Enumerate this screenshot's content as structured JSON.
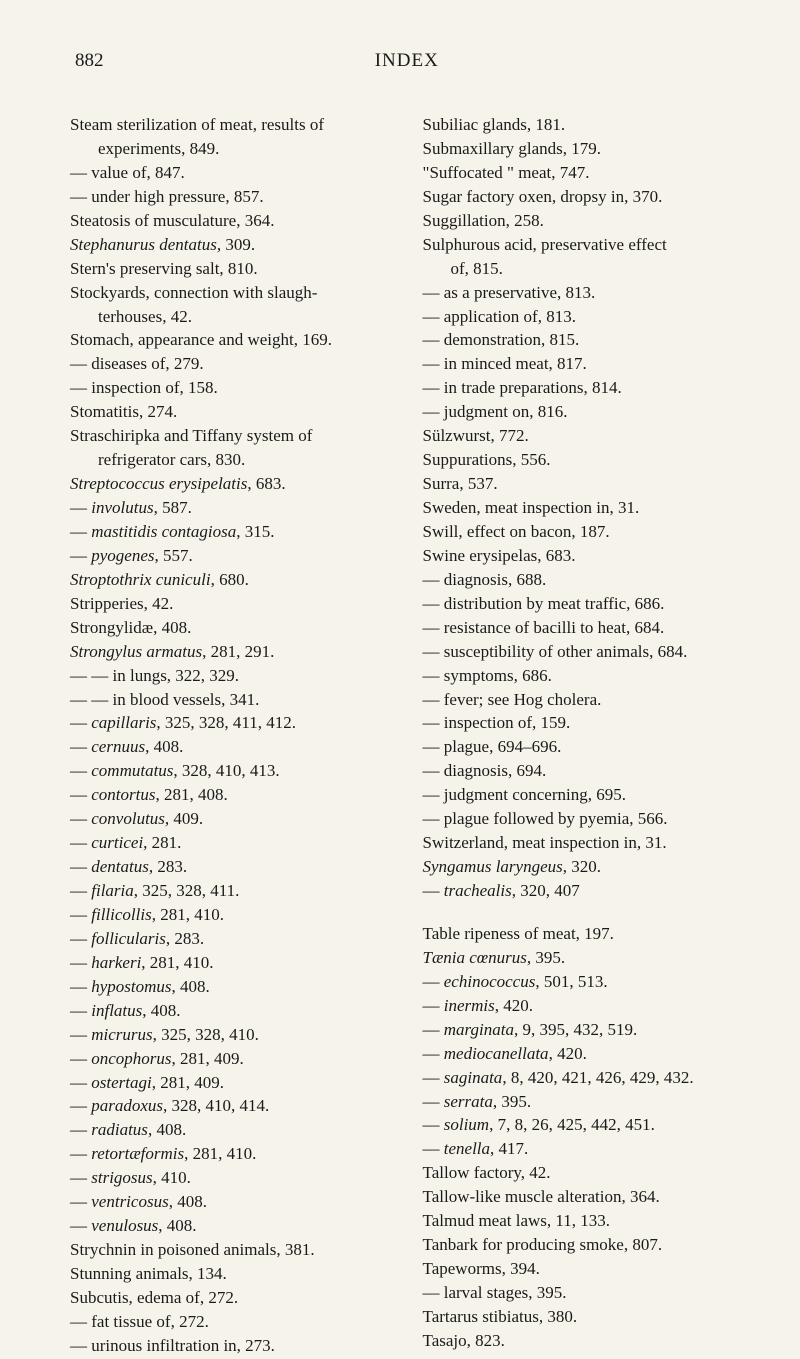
{
  "header": {
    "page_num": "882",
    "title": "INDEX"
  },
  "left_col": [
    {
      "text": "Steam sterilization of meat, results of",
      "indent": 0
    },
    {
      "text": "experiments, 849.",
      "indent": 2,
      "noindent": true
    },
    {
      "text": "— value of, 847.",
      "indent": 1
    },
    {
      "text": "— under high pressure, 857.",
      "indent": 1
    },
    {
      "text": "Steatosis of musculature, 364.",
      "indent": 0
    },
    {
      "text": "Stephanurus dentatus, 309.",
      "indent": 0,
      "italic_parts": [
        "Stephanurus dentatus"
      ]
    },
    {
      "text": "Stern's preserving salt, 810.",
      "indent": 0
    },
    {
      "text": "Stockyards, connection with slaugh-",
      "indent": 0
    },
    {
      "text": "terhouses, 42.",
      "indent": 2,
      "noindent": true
    },
    {
      "text": "Stomach, appearance and weight, 169.",
      "indent": 0
    },
    {
      "text": "— diseases of, 279.",
      "indent": 1
    },
    {
      "text": "— inspection of, 158.",
      "indent": 1
    },
    {
      "text": "Stomatitis, 274.",
      "indent": 0
    },
    {
      "text": "Straschiripka and Tiffany system of",
      "indent": 0
    },
    {
      "text": "refrigerator cars, 830.",
      "indent": 2,
      "noindent": true
    },
    {
      "text": "Streptococcus erysipelatis, 683.",
      "indent": 0,
      "italic_parts": [
        "Streptococcus erysipelatis"
      ]
    },
    {
      "text": "— involutus, 587.",
      "indent": 1,
      "italic_parts": [
        "involutus"
      ]
    },
    {
      "text": "— mastitidis contagiosa, 315.",
      "indent": 1,
      "italic_parts": [
        "mastitidis contagiosa"
      ]
    },
    {
      "text": "— pyogenes, 557.",
      "indent": 1,
      "italic_parts": [
        "pyogenes"
      ]
    },
    {
      "text": "Stroptothrix cuniculi, 680.",
      "indent": 0,
      "italic_parts": [
        "Stroptothrix cuniculi"
      ]
    },
    {
      "text": "Stripperies, 42.",
      "indent": 0
    },
    {
      "text": "Strongylidæ, 408.",
      "indent": 0
    },
    {
      "text": "Strongylus armatus, 281, 291.",
      "indent": 0,
      "italic_parts": [
        "Strongylus armatus"
      ]
    },
    {
      "text": "— — in lungs, 322, 329.",
      "indent": 1
    },
    {
      "text": "— — in blood vessels, 341.",
      "indent": 1
    },
    {
      "text": "— capillaris, 325, 328, 411, 412.",
      "indent": 1,
      "italic_parts": [
        "capillaris"
      ]
    },
    {
      "text": "— cernuus, 408.",
      "indent": 1,
      "italic_parts": [
        "cernuus"
      ]
    },
    {
      "text": "— commutatus, 328, 410, 413.",
      "indent": 1,
      "italic_parts": [
        "commutatus"
      ]
    },
    {
      "text": "— contortus, 281, 408.",
      "indent": 1,
      "italic_parts": [
        "contortus"
      ]
    },
    {
      "text": "— convolutus, 409.",
      "indent": 1,
      "italic_parts": [
        "convolutus"
      ]
    },
    {
      "text": "— curticei, 281.",
      "indent": 1,
      "italic_parts": [
        "curticei"
      ]
    },
    {
      "text": "— dentatus, 283.",
      "indent": 1,
      "italic_parts": [
        "dentatus"
      ]
    },
    {
      "text": "— filaria, 325, 328, 411.",
      "indent": 1,
      "italic_parts": [
        "filaria"
      ]
    },
    {
      "text": "— fillicollis, 281, 410.",
      "indent": 1,
      "italic_parts": [
        "fillicollis"
      ]
    },
    {
      "text": "— follicularis, 283.",
      "indent": 1,
      "italic_parts": [
        "follicularis"
      ]
    },
    {
      "text": "— harkeri, 281, 410.",
      "indent": 1,
      "italic_parts": [
        "harkeri"
      ]
    },
    {
      "text": "— hypostomus, 408.",
      "indent": 1,
      "italic_parts": [
        "hypostomus"
      ]
    },
    {
      "text": "— inflatus, 408.",
      "indent": 1,
      "italic_parts": [
        "inflatus"
      ]
    },
    {
      "text": "— micrurus, 325, 328, 410.",
      "indent": 1,
      "italic_parts": [
        "micrurus"
      ]
    },
    {
      "text": "— oncophorus, 281, 409.",
      "indent": 1,
      "italic_parts": [
        "oncophorus"
      ]
    },
    {
      "text": "— ostertagi, 281, 409.",
      "indent": 1,
      "italic_parts": [
        "ostertagi"
      ]
    },
    {
      "text": "— paradoxus, 328, 410, 414.",
      "indent": 1,
      "italic_parts": [
        "paradoxus"
      ]
    },
    {
      "text": "— radiatus, 408.",
      "indent": 1,
      "italic_parts": [
        "radiatus"
      ]
    },
    {
      "text": "— retortæformis, 281, 410.",
      "indent": 1,
      "italic_parts": [
        "retortæformis"
      ]
    },
    {
      "text": "— strigosus, 410.",
      "indent": 1,
      "italic_parts": [
        "strigosus"
      ]
    },
    {
      "text": "— ventricosus, 408.",
      "indent": 1,
      "italic_parts": [
        "ventricosus"
      ]
    },
    {
      "text": "— venulosus, 408.",
      "indent": 1,
      "italic_parts": [
        "venulosus"
      ]
    },
    {
      "text": "Strychnin in poisoned animals, 381.",
      "indent": 0
    },
    {
      "text": "Stunning animals, 134.",
      "indent": 0
    },
    {
      "text": "Subcutis, edema of, 272.",
      "indent": 0
    },
    {
      "text": "— fat tissue of, 272.",
      "indent": 1
    },
    {
      "text": "— urinous infiltration in, 273.",
      "indent": 1
    }
  ],
  "right_col": [
    {
      "text": "Subiliac glands, 181.",
      "indent": 0
    },
    {
      "text": "Submaxillary glands, 179.",
      "indent": 0
    },
    {
      "text": "\"Suffocated \" meat, 747.",
      "indent": 0
    },
    {
      "text": "Sugar factory oxen, dropsy in, 370.",
      "indent": 0
    },
    {
      "text": "Suggillation, 258.",
      "indent": 0
    },
    {
      "text": "Sulphurous acid, preservative effect",
      "indent": 0
    },
    {
      "text": "of, 815.",
      "indent": 2,
      "noindent": true
    },
    {
      "text": "— as a preservative, 813.",
      "indent": 1
    },
    {
      "text": "— application of, 813.",
      "indent": 1
    },
    {
      "text": "— demonstration, 815.",
      "indent": 1
    },
    {
      "text": "— in minced meat, 817.",
      "indent": 1
    },
    {
      "text": "— in trade preparations, 814.",
      "indent": 1
    },
    {
      "text": "— judgment on, 816.",
      "indent": 1
    },
    {
      "text": "Sülzwurst, 772.",
      "indent": 0
    },
    {
      "text": "Suppurations, 556.",
      "indent": 0
    },
    {
      "text": "Surra, 537.",
      "indent": 0
    },
    {
      "text": "Sweden, meat inspection in, 31.",
      "indent": 0
    },
    {
      "text": "Swill, effect on bacon, 187.",
      "indent": 0
    },
    {
      "text": "Swine erysipelas, 683.",
      "indent": 0
    },
    {
      "text": "— diagnosis, 688.",
      "indent": 1
    },
    {
      "text": "— distribution by meat traffic, 686.",
      "indent": 1
    },
    {
      "text": "— resistance of bacilli to heat, 684.",
      "indent": 1
    },
    {
      "text": "— susceptibility of other animals, 684.",
      "indent": 1
    },
    {
      "text": "— symptoms, 686.",
      "indent": 1
    },
    {
      "text": "— fever; see Hog cholera.",
      "indent": 1
    },
    {
      "text": "— inspection of, 159.",
      "indent": 1
    },
    {
      "text": "— plague, 694–696.",
      "indent": 1
    },
    {
      "text": "— diagnosis, 694.",
      "indent": 1
    },
    {
      "text": "— judgment concerning, 695.",
      "indent": 1
    },
    {
      "text": "— plague followed by pyemia, 566.",
      "indent": 1
    },
    {
      "text": "Switzerland, meat inspection in, 31.",
      "indent": 0
    },
    {
      "text": "Syngamus laryngeus, 320.",
      "indent": 0,
      "italic_parts": [
        "Syngamus laryngeus"
      ]
    },
    {
      "text": "— trachealis, 320, 407",
      "indent": 1,
      "italic_parts": [
        "trachealis"
      ]
    },
    {
      "text": "Table ripeness of meat, 197.",
      "indent": 0,
      "gap": true
    },
    {
      "text": "Tænia cœnurus, 395.",
      "indent": 0,
      "italic_parts": [
        "Tænia cœnurus"
      ]
    },
    {
      "text": "— echinococcus, 501, 513.",
      "indent": 1,
      "italic_parts": [
        "echinococcus"
      ]
    },
    {
      "text": "— inermis, 420.",
      "indent": 1,
      "italic_parts": [
        "inermis"
      ]
    },
    {
      "text": "— marginata, 9, 395, 432, 519.",
      "indent": 1,
      "italic_parts": [
        "marginata"
      ]
    },
    {
      "text": "— mediocanellata, 420.",
      "indent": 1,
      "italic_parts": [
        "mediocanellata"
      ]
    },
    {
      "text": "— saginata, 8, 420, 421, 426, 429, 432.",
      "indent": 1,
      "italic_parts": [
        "saginata"
      ]
    },
    {
      "text": "— serrata, 395.",
      "indent": 1,
      "italic_parts": [
        "serrata"
      ]
    },
    {
      "text": "— solium, 7, 8, 26, 425, 442, 451.",
      "indent": 1,
      "italic_parts": [
        "solium"
      ]
    },
    {
      "text": "— tenella, 417.",
      "indent": 1,
      "italic_parts": [
        "tenella"
      ]
    },
    {
      "text": "Tallow factory, 42.",
      "indent": 0
    },
    {
      "text": "Tallow-like muscle alteration, 364.",
      "indent": 0
    },
    {
      "text": "Talmud meat laws, 11, 133.",
      "indent": 0
    },
    {
      "text": "Tanbark for producing smoke, 807.",
      "indent": 0
    },
    {
      "text": "Tapeworms, 394.",
      "indent": 0
    },
    {
      "text": "— larval stages, 395.",
      "indent": 1
    },
    {
      "text": "Tartarus stibiatus, 380.",
      "indent": 0
    },
    {
      "text": "Tasajo, 823.",
      "indent": 0
    }
  ]
}
